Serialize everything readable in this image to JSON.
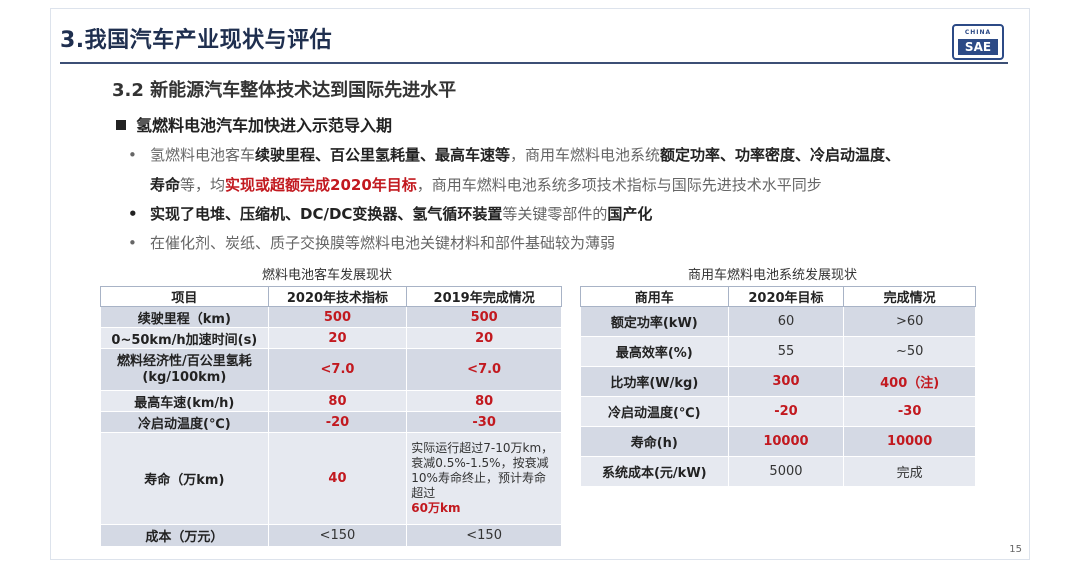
{
  "title": "3.我国汽车产业现状与评估",
  "logo": {
    "top": "CHINA",
    "bottom": "SAE"
  },
  "subtitle": "3.2 新能源汽车整体技术达到国际先进水平",
  "section": "氢燃料电池汽车加快进入示范导入期",
  "bullets": {
    "b1_p1": "氢燃料电池客车",
    "b1_p2": "续驶里程、百公里氢耗量、最高车速等",
    "b1_p3": "，商用车燃料电池系统",
    "b1_p4": "额定功率、功率密度、冷启动温度、",
    "b1_p5": "寿命",
    "b1_p6": "等，均",
    "b1_p7": "实现或超额完成2020年目标",
    "b1_p8": "，商用车燃料电池系统多项技术指标与国际先进技术水平同步",
    "b2_p1": "实现了电堆、压缩机、DC/DC变换器、氢气循环装置",
    "b2_p2": "等关键零部件的",
    "b2_p3": "国产化",
    "b3": "在催化剂、炭纸、质子交换膜等燃料电池关键材料和部件基础较为薄弱",
    "dot": "•"
  },
  "table1": {
    "caption": "燃料电池客车发展现状",
    "headers": [
      "项目",
      "2020年技术指标",
      "2019年完成情况"
    ],
    "rows": [
      [
        "续驶里程（km)",
        "500",
        "500"
      ],
      [
        "0~50km/h加速时间(s)",
        "20",
        "20"
      ],
      [
        "燃料经济性/百公里氢耗\n(kg/100km)",
        "<7.0",
        "<7.0"
      ],
      [
        "最高车速(km/h)",
        "80",
        "80"
      ],
      [
        "冷启动温度(℃)",
        "-20",
        "-30"
      ],
      [
        "寿命（万km)",
        "40",
        "实际运行超过7-10万km，衰减0.5%-1.5%，按衰减10%寿命终止，预计寿命超过"
      ],
      [
        "成本（万元）",
        "<150",
        "<150"
      ]
    ],
    "life_highlight": "60万km"
  },
  "table2": {
    "caption": "商用车燃料电池系统发展现状",
    "headers": [
      "商用车",
      "2020年目标",
      "完成情况"
    ],
    "rows": [
      [
        "额定功率(kW)",
        "60",
        ">60"
      ],
      [
        "最高效率(%)",
        "55",
        "~50"
      ],
      [
        "比功率(W/kg)",
        "300",
        "400（注)"
      ],
      [
        "冷启动温度(℃)",
        "-20",
        "-30"
      ],
      [
        "寿命(h)",
        "10000",
        "10000"
      ],
      [
        "系统成本(元/kW)",
        "5000",
        "完成"
      ]
    ]
  },
  "page_number": "15"
}
